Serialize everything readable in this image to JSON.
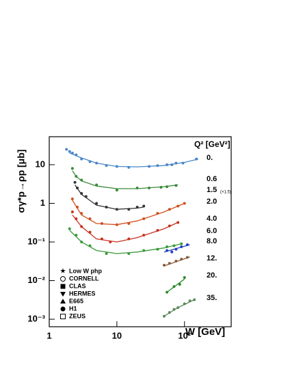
{
  "chart_data": {
    "type": "line",
    "log_x": true,
    "log_y": true,
    "xlabel": "W [GeV]",
    "ylabel": "σγ*p→ρp [μb]",
    "legend_title": "Q² [GeV²]",
    "xlim": [
      1,
      490
    ],
    "ylim": [
      0.00064,
      53
    ],
    "xticks": [
      {
        "value": 1,
        "label": "1"
      },
      {
        "value": 10,
        "label": "10"
      },
      {
        "value": 100,
        "label": "10²"
      }
    ],
    "yticks": [
      {
        "value": 0.001,
        "label": "10⁻³"
      },
      {
        "value": 0.01,
        "label": "10⁻²"
      },
      {
        "value": 0.1,
        "label": "10⁻¹"
      },
      {
        "value": 1,
        "label": "1"
      },
      {
        "value": 10,
        "label": "10"
      }
    ],
    "experiments": [
      "Low W php",
      "CORNELL",
      "CLAS",
      "HERMES",
      "E665",
      "H1",
      "ZEUS"
    ],
    "series": [
      {
        "name": "0.",
        "color": "#4a86c8",
        "x": [
          2,
          3,
          5,
          10,
          20,
          50,
          100,
          160
        ],
        "values": [
          20,
          15,
          11,
          9,
          8.8,
          9.5,
          11.5,
          14
        ],
        "points": {
          "x": [
            1.8,
            2,
            2.2,
            2.5,
            3,
            4,
            5,
            7,
            10,
            15,
            30,
            40,
            55,
            65,
            75,
            95,
            150
          ],
          "values": [
            25,
            22,
            20,
            18,
            14,
            12,
            11,
            9.5,
            9,
            8.5,
            9,
            9.5,
            10,
            10,
            11,
            11,
            14
          ]
        }
      },
      {
        "name": "0.6",
        "color": "#3a8a3a",
        "x": [
          2.2,
          2.5,
          3,
          5,
          10,
          20,
          50,
          80
        ],
        "values": [
          7,
          5,
          3.8,
          2.8,
          2.4,
          2.4,
          2.7,
          3
        ],
        "points": {
          "x": [
            2.2,
            2.5,
            3,
            5,
            10,
            20,
            30,
            45,
            55,
            75
          ],
          "values": [
            8,
            5,
            4,
            3,
            2.2,
            2.5,
            2.5,
            2.6,
            2.7,
            2.9
          ]
        }
      },
      {
        "name": "1.5",
        "note": "(×1.5)",
        "color": "#333333",
        "x": [
          2.4,
          3,
          5,
          10,
          20,
          25
        ],
        "values": [
          3,
          1.7,
          0.9,
          0.7,
          0.75,
          0.8
        ],
        "points": {
          "x": [
            2.4,
            2.6,
            3,
            3.5,
            5,
            7,
            10,
            15,
            20,
            25
          ],
          "values": [
            3.5,
            2.5,
            1.8,
            1.5,
            1,
            0.8,
            0.7,
            0.7,
            0.8,
            0.85
          ]
        }
      },
      {
        "name": "2.0",
        "color": "#d05020",
        "x": [
          2.2,
          3,
          5,
          10,
          20,
          50,
          100
        ],
        "values": [
          1.2,
          0.5,
          0.3,
          0.28,
          0.35,
          0.6,
          1
        ],
        "points": {
          "x": [
            2.2,
            2.6,
            3,
            4,
            6,
            10,
            15,
            25,
            40,
            60,
            80,
            100
          ],
          "values": [
            1.3,
            0.8,
            0.55,
            0.4,
            0.3,
            0.28,
            0.3,
            0.4,
            0.55,
            0.7,
            0.85,
            1
          ]
        }
      },
      {
        "name": "4.0",
        "color": "#c83020",
        "x": [
          2.2,
          3,
          5,
          10,
          20,
          50,
          80
        ],
        "values": [
          0.5,
          0.25,
          0.12,
          0.1,
          0.13,
          0.22,
          0.32
        ],
        "points": {
          "x": [
            2.2,
            2.5,
            3,
            4,
            6,
            8,
            15,
            25,
            40,
            60,
            80
          ],
          "values": [
            0.6,
            0.4,
            0.25,
            0.18,
            0.12,
            0.1,
            0.12,
            0.15,
            0.2,
            0.26,
            0.32
          ]
        }
      },
      {
        "name": "6.0",
        "color": "#3a9a3a",
        "x": [
          2,
          3,
          5,
          10,
          20,
          50,
          90
        ],
        "values": [
          0.2,
          0.1,
          0.06,
          0.05,
          0.055,
          0.07,
          0.09
        ],
        "points": {
          "x": [
            2,
            2.5,
            3,
            4,
            7,
            15,
            25,
            40,
            55,
            70,
            90
          ],
          "values": [
            0.22,
            0.15,
            0.1,
            0.08,
            0.05,
            0.05,
            0.06,
            0.065,
            0.075,
            0.08,
            0.09
          ]
        }
      },
      {
        "name": "8.0",
        "color": "#2040c0",
        "x": [
          50,
          120
        ],
        "values": [
          0.055,
          0.085
        ],
        "points": {
          "x": [
            55,
            65,
            75,
            90,
            110
          ],
          "values": [
            0.06,
            0.055,
            0.065,
            0.075,
            0.085
          ]
        }
      },
      {
        "name": "12.",
        "color": "#8a5a3a",
        "x": [
          50,
          120
        ],
        "values": [
          0.024,
          0.041
        ],
        "points": {
          "x": [
            50,
            60,
            75,
            90,
            110
          ],
          "values": [
            0.025,
            0.028,
            0.032,
            0.036,
            0.04
          ]
        }
      },
      {
        "name": "20.",
        "color": "#2a8a2a",
        "x": [
          55,
          100
        ],
        "values": [
          0.005,
          0.011
        ],
        "points": {
          "x": [
            55,
            70,
            85,
            100
          ],
          "values": [
            0.005,
            0.007,
            0.008,
            0.012
          ]
        }
      },
      {
        "name": "35.",
        "color": "#5a8a5a",
        "x": [
          50,
          80,
          140
        ],
        "values": [
          0.0012,
          0.002,
          0.0032
        ],
        "points": {
          "x": [
            50,
            60,
            70,
            80,
            100,
            120,
            140
          ],
          "values": [
            0.0012,
            0.0015,
            0.0018,
            0.002,
            0.0025,
            0.003,
            0.0032
          ]
        }
      }
    ]
  }
}
